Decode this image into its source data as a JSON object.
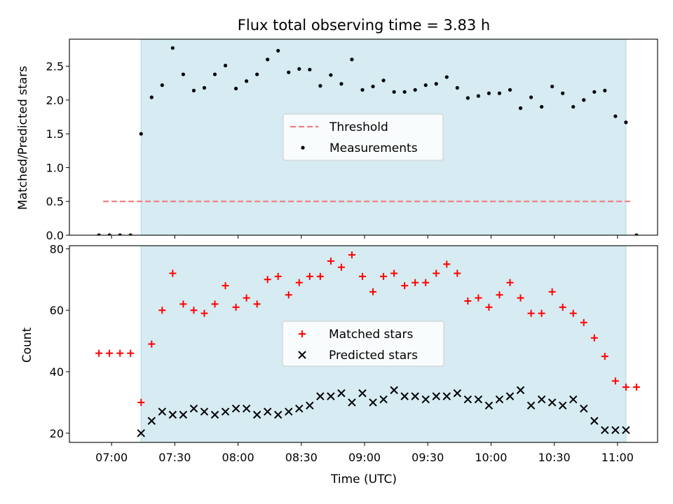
{
  "chart_data": [
    {
      "type": "scatter",
      "title": "Flux total observing time = 3.83 h",
      "ylabel": "Matched/Predicted stars",
      "xlabel": "",
      "ylim": [
        0,
        2.9
      ],
      "yticks": [
        "0.0",
        "0.5",
        "1.0",
        "1.5",
        "2.0",
        "2.5"
      ],
      "grid": false,
      "legend_position": "center",
      "threshold": {
        "name": "Threshold",
        "value": 0.5,
        "color": "#f08080",
        "x_range": [
          "06:56",
          "11:06"
        ]
      },
      "shaded_interval": {
        "start": "07:14",
        "end": "11:04",
        "color": "#add8e6"
      },
      "series": [
        {
          "name": "Measurements",
          "color": "#000000",
          "points": [
            [
              "06:54",
              0.0
            ],
            [
              "06:59",
              0.0
            ],
            [
              "07:04",
              0.0
            ],
            [
              "07:09",
              0.0
            ],
            [
              "07:14",
              1.5
            ],
            [
              "07:19",
              2.04
            ],
            [
              "07:24",
              2.22
            ],
            [
              "07:29",
              2.77
            ],
            [
              "07:34",
              2.38
            ],
            [
              "07:39",
              2.14
            ],
            [
              "07:44",
              2.18
            ],
            [
              "07:49",
              2.38
            ],
            [
              "07:54",
              2.51
            ],
            [
              "07:59",
              2.17
            ],
            [
              "08:04",
              2.28
            ],
            [
              "08:09",
              2.38
            ],
            [
              "08:14",
              2.6
            ],
            [
              "08:19",
              2.73
            ],
            [
              "08:24",
              2.41
            ],
            [
              "08:29",
              2.46
            ],
            [
              "08:34",
              2.45
            ],
            [
              "08:39",
              2.21
            ],
            [
              "08:44",
              2.37
            ],
            [
              "08:49",
              2.24
            ],
            [
              "08:54",
              2.6
            ],
            [
              "08:59",
              2.15
            ],
            [
              "09:04",
              2.2
            ],
            [
              "09:09",
              2.29
            ],
            [
              "09:14",
              2.12
            ],
            [
              "09:19",
              2.12
            ],
            [
              "09:24",
              2.15
            ],
            [
              "09:29",
              2.22
            ],
            [
              "09:34",
              2.24
            ],
            [
              "09:39",
              2.34
            ],
            [
              "09:44",
              2.18
            ],
            [
              "09:49",
              2.03
            ],
            [
              "09:54",
              2.06
            ],
            [
              "09:59",
              2.1
            ],
            [
              "10:04",
              2.1
            ],
            [
              "10:09",
              2.15
            ],
            [
              "10:14",
              1.88
            ],
            [
              "10:19",
              2.04
            ],
            [
              "10:24",
              1.9
            ],
            [
              "10:29",
              2.2
            ],
            [
              "10:34",
              2.1
            ],
            [
              "10:39",
              1.9
            ],
            [
              "10:44",
              2.0
            ],
            [
              "10:49",
              2.12
            ],
            [
              "10:54",
              2.14
            ],
            [
              "10:59",
              1.76
            ],
            [
              "11:04",
              1.67
            ],
            [
              "11:09",
              0.0
            ]
          ]
        }
      ]
    },
    {
      "type": "scatter",
      "title": "",
      "ylabel": "Count",
      "xlabel": "Time (UTC)",
      "ylim": [
        17,
        81
      ],
      "yticks": [
        "20",
        "40",
        "60",
        "80"
      ],
      "xticks": [
        "07:00",
        "07:30",
        "08:00",
        "08:30",
        "09:00",
        "09:30",
        "10:00",
        "10:30",
        "11:00"
      ],
      "xlim": [
        "06:40",
        "11:19"
      ],
      "grid": false,
      "legend_position": "center",
      "shaded_interval": {
        "start": "07:14",
        "end": "11:04",
        "color": "#add8e6"
      },
      "series": [
        {
          "name": "Matched stars",
          "color": "#ff0000",
          "marker": "plus",
          "points": [
            [
              "06:54",
              46
            ],
            [
              "06:59",
              46
            ],
            [
              "07:04",
              46
            ],
            [
              "07:09",
              46
            ],
            [
              "07:14",
              30
            ],
            [
              "07:19",
              49
            ],
            [
              "07:24",
              60
            ],
            [
              "07:29",
              72
            ],
            [
              "07:34",
              62
            ],
            [
              "07:39",
              60
            ],
            [
              "07:44",
              59
            ],
            [
              "07:49",
              62
            ],
            [
              "07:54",
              68
            ],
            [
              "07:59",
              61
            ],
            [
              "08:04",
              64
            ],
            [
              "08:09",
              62
            ],
            [
              "08:14",
              70
            ],
            [
              "08:19",
              71
            ],
            [
              "08:24",
              65
            ],
            [
              "08:29",
              69
            ],
            [
              "08:34",
              71
            ],
            [
              "08:39",
              71
            ],
            [
              "08:44",
              76
            ],
            [
              "08:49",
              74
            ],
            [
              "08:54",
              78
            ],
            [
              "08:59",
              71
            ],
            [
              "09:04",
              66
            ],
            [
              "09:09",
              71
            ],
            [
              "09:14",
              72
            ],
            [
              "09:19",
              68
            ],
            [
              "09:24",
              69
            ],
            [
              "09:29",
              69
            ],
            [
              "09:34",
              72
            ],
            [
              "09:39",
              75
            ],
            [
              "09:44",
              72
            ],
            [
              "09:49",
              63
            ],
            [
              "09:54",
              64
            ],
            [
              "09:59",
              61
            ],
            [
              "10:04",
              65
            ],
            [
              "10:09",
              69
            ],
            [
              "10:14",
              64
            ],
            [
              "10:19",
              59
            ],
            [
              "10:24",
              59
            ],
            [
              "10:29",
              66
            ],
            [
              "10:34",
              61
            ],
            [
              "10:39",
              59
            ],
            [
              "10:44",
              56
            ],
            [
              "10:49",
              51
            ],
            [
              "10:54",
              45
            ],
            [
              "10:59",
              37
            ],
            [
              "11:04",
              35
            ],
            [
              "11:09",
              35
            ]
          ]
        },
        {
          "name": "Predicted stars",
          "color": "#000000",
          "marker": "x",
          "points": [
            [
              "07:14",
              20
            ],
            [
              "07:19",
              24
            ],
            [
              "07:24",
              27
            ],
            [
              "07:29",
              26
            ],
            [
              "07:34",
              26
            ],
            [
              "07:39",
              28
            ],
            [
              "07:44",
              27
            ],
            [
              "07:49",
              26
            ],
            [
              "07:54",
              27
            ],
            [
              "07:59",
              28
            ],
            [
              "08:04",
              28
            ],
            [
              "08:09",
              26
            ],
            [
              "08:14",
              27
            ],
            [
              "08:19",
              26
            ],
            [
              "08:24",
              27
            ],
            [
              "08:29",
              28
            ],
            [
              "08:34",
              29
            ],
            [
              "08:39",
              32
            ],
            [
              "08:44",
              32
            ],
            [
              "08:49",
              33
            ],
            [
              "08:54",
              30
            ],
            [
              "08:59",
              33
            ],
            [
              "09:04",
              30
            ],
            [
              "09:09",
              31
            ],
            [
              "09:14",
              34
            ],
            [
              "09:19",
              32
            ],
            [
              "09:24",
              32
            ],
            [
              "09:29",
              31
            ],
            [
              "09:34",
              32
            ],
            [
              "09:39",
              32
            ],
            [
              "09:44",
              33
            ],
            [
              "09:49",
              31
            ],
            [
              "09:54",
              31
            ],
            [
              "09:59",
              29
            ],
            [
              "10:04",
              31
            ],
            [
              "10:09",
              32
            ],
            [
              "10:14",
              34
            ],
            [
              "10:19",
              29
            ],
            [
              "10:24",
              31
            ],
            [
              "10:29",
              30
            ],
            [
              "10:34",
              29
            ],
            [
              "10:39",
              31
            ],
            [
              "10:44",
              28
            ],
            [
              "10:49",
              24
            ],
            [
              "10:54",
              21
            ],
            [
              "10:59",
              21
            ],
            [
              "11:04",
              21
            ]
          ]
        }
      ]
    }
  ]
}
